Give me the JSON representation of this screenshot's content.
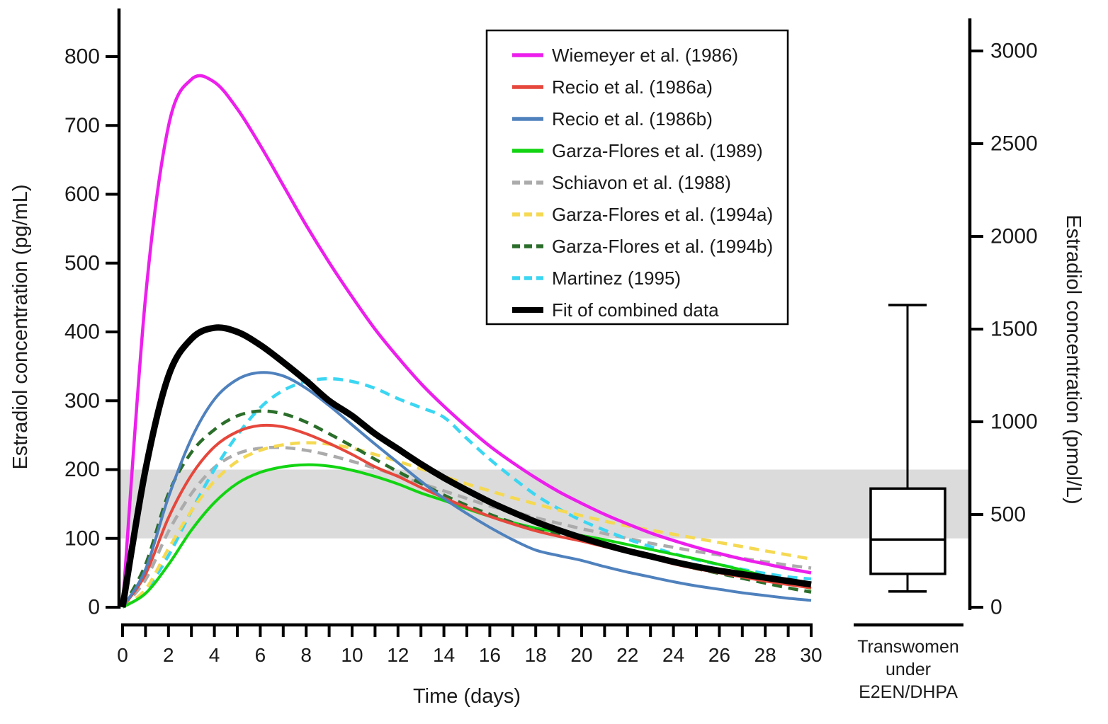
{
  "figure": {
    "x_axis": {
      "title": "Time (days)",
      "min": 0,
      "max": 30,
      "labeled_ticks": [
        0,
        2,
        4,
        6,
        8,
        10,
        12,
        14,
        16,
        18,
        20,
        22,
        24,
        26,
        28,
        30
      ],
      "minor_tick_step": 1
    },
    "y_left": {
      "title": "Estradiol concentration (pg/mL)",
      "min": 0,
      "max": 800,
      "ticks": [
        0,
        100,
        200,
        300,
        400,
        500,
        600,
        700,
        800
      ]
    },
    "y_right": {
      "title": "Estradiol concentration (pmol/L)",
      "min": 0,
      "max": 3000,
      "ticks": [
        0,
        500,
        1000,
        1500,
        2000,
        2500,
        3000
      ]
    }
  },
  "chart_data": {
    "type": "line",
    "x": [
      0,
      1,
      2,
      3,
      4,
      5,
      6,
      7,
      8,
      9,
      10,
      11,
      12,
      13,
      14,
      15,
      16,
      17,
      18,
      19,
      20,
      21,
      22,
      23,
      24,
      25,
      26,
      27,
      28,
      29,
      30
    ],
    "xlabel": "Time (days)",
    "ylabel_left": "Estradiol concentration (pg/mL)",
    "ylabel_right": "Estradiol concentration (pmol/L)",
    "ylim_left": [
      0,
      800
    ],
    "ylim_right": [
      0,
      3000
    ],
    "grid": false,
    "legend_position": "upper right",
    "series": [
      {
        "name": "Wiemeyer et al. (1986)",
        "color": "#EC1FEC",
        "style": "solid",
        "width": 4.5,
        "values": [
          0,
          450,
          699,
          767,
          763,
          724,
          671,
          613,
          555,
          501,
          451,
          404,
          363,
          325,
          292,
          262,
          234,
          210,
          188,
          168,
          151,
          135,
          121,
          108,
          97,
          87,
          78,
          70,
          63,
          56,
          50
        ]
      },
      {
        "name": "Recio et al. (1986a)",
        "color": "#E6473C",
        "style": "solid",
        "width": 4,
        "values": [
          0,
          48,
          130,
          192,
          233,
          255,
          264,
          262,
          252,
          238,
          222,
          204,
          190,
          174,
          159,
          145,
          132,
          121,
          111,
          103,
          96,
          88,
          80,
          72,
          63,
          56,
          50,
          44,
          38,
          33,
          28
        ]
      },
      {
        "name": "Recio et al. (1986b)",
        "color": "#4F81BD",
        "style": "solid",
        "width": 4,
        "values": [
          0,
          55,
          160,
          245,
          302,
          331,
          341,
          336,
          318,
          293,
          265,
          237,
          210,
          183,
          158,
          136,
          116,
          98,
          83,
          75,
          68,
          59,
          51,
          44,
          37,
          31,
          26,
          21,
          17,
          13,
          10
        ]
      },
      {
        "name": "Garza-Flores et al. (1989)",
        "color": "#12D412",
        "style": "solid",
        "width": 4,
        "values": [
          0,
          20,
          62,
          112,
          152,
          180,
          196,
          204,
          207,
          205,
          199,
          190,
          179,
          166,
          155,
          143,
          132,
          123,
          115,
          109,
          104,
          98,
          91,
          84,
          77,
          70,
          62,
          54,
          45,
          36,
          27
        ]
      },
      {
        "name": "Schiavon et al. (1988)",
        "color": "#ABABAB",
        "style": "dashed",
        "width": 4.5,
        "values": [
          0,
          40,
          110,
          165,
          203,
          223,
          231,
          232,
          228,
          221,
          212,
          202,
          191,
          180,
          169,
          158,
          147,
          139,
          130,
          122,
          114,
          107,
          100,
          93,
          87,
          81,
          76,
          71,
          66,
          61,
          57
        ]
      },
      {
        "name": "Garza-Flores et al. (1994a)",
        "color": "#F5D952",
        "style": "dashed",
        "width": 4.5,
        "values": [
          0,
          26,
          85,
          140,
          183,
          212,
          228,
          236,
          239,
          237,
          231,
          222,
          212,
          201,
          190,
          179,
          169,
          159,
          150,
          141,
          133,
          125,
          118,
          112,
          106,
          100,
          94,
          88,
          82,
          76,
          70
        ]
      },
      {
        "name": "Garza-Flores et al. (1994b)",
        "color": "#2B6E2B",
        "style": "dashed",
        "width": 4.5,
        "values": [
          0,
          62,
          165,
          225,
          258,
          278,
          285,
          281,
          269,
          252,
          234,
          215,
          197,
          180,
          163,
          148,
          135,
          123,
          112,
          106,
          101,
          91,
          81,
          72,
          64,
          56,
          49,
          42,
          35,
          28,
          22
        ]
      },
      {
        "name": "Martinez (1995)",
        "color": "#3BD6F2",
        "style": "dashed",
        "width": 4.5,
        "values": [
          0,
          25,
          75,
          140,
          200,
          250,
          290,
          315,
          328,
          332,
          328,
          318,
          303,
          290,
          276,
          245,
          215,
          188,
          163,
          143,
          126,
          112,
          99,
          88,
          78,
          69,
          62,
          55,
          49,
          44,
          41
        ]
      },
      {
        "name": "Fit of combined data",
        "color": "#000000",
        "style": "solid",
        "width": 9,
        "values": [
          0,
          200,
          336,
          390,
          406,
          400,
          381,
          356,
          329,
          300,
          278,
          252,
          230,
          208,
          188,
          170,
          153,
          138,
          124,
          112,
          101,
          91,
          82,
          74,
          66,
          59,
          53,
          48,
          43,
          38,
          33
        ]
      }
    ],
    "reference_band": {
      "units": "pg/mL",
      "y_low": 100,
      "y_high": 200,
      "color": "#DBDBDB"
    },
    "boxplot": {
      "units": "pmol/L",
      "whisker_high": 1630,
      "q3": 640,
      "median": 365,
      "q1": 180,
      "whisker_low": 85,
      "label_lines": [
        "Transwomen",
        "under",
        "E2EN/DHPA"
      ]
    }
  }
}
